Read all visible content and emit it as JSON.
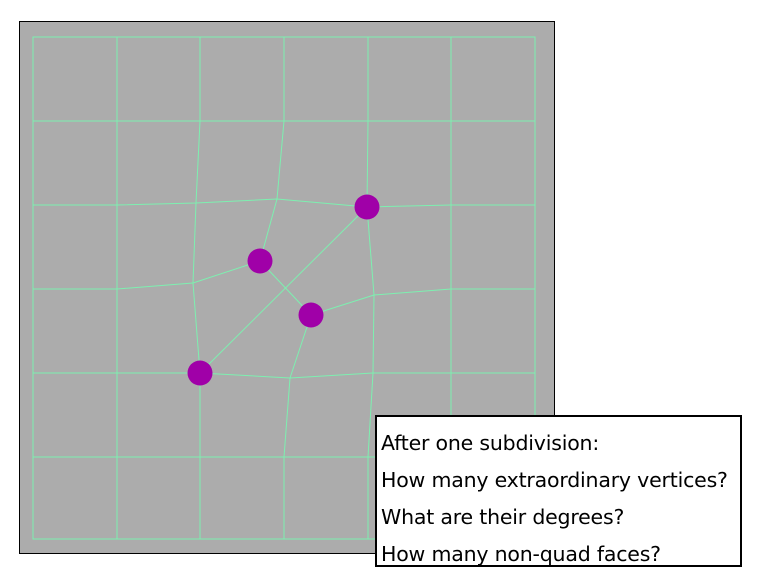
{
  "colors": {
    "canvas_background": "#acacac",
    "canvas_border": "#000000",
    "edge": "#7df0b0",
    "vertex": "#a000a8"
  },
  "questions": {
    "line1": "After one subdivision:",
    "line2": "How many extraordinary vertices?",
    "line3": "What are their degrees?",
    "line4": "How many non-quad faces?"
  }
}
